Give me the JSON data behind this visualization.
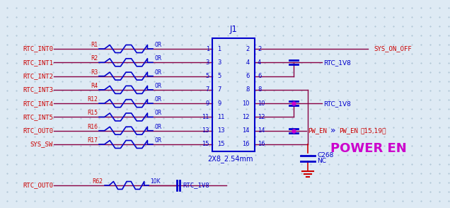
{
  "bg_color": "#deeaf4",
  "dot_color": "#a8c0d0",
  "wire_color": "#cc0000",
  "dark_wire_color": "#880044",
  "component_color": "#0000cc",
  "text_red": "#cc0000",
  "text_blue": "#0000cc",
  "text_magenta": "#cc00cc",
  "text_dark": "#660033",
  "title": "J1",
  "subtitle": "2X8_2.54mm",
  "left_signals": [
    "RTC_INT0",
    "RTC_INT1",
    "RTC_INT2",
    "RTC_INT3",
    "RTC_INT4",
    "RTC_INT5",
    "RTC_OUT0",
    "SYS_SW"
  ],
  "left_resistors": [
    "R1",
    "R2",
    "R3",
    "R4",
    "R12",
    "R15",
    "R16",
    "R17"
  ],
  "left_values": [
    "0R",
    "0R",
    "0R",
    "0R",
    "0R",
    "0R",
    "0R",
    "0R"
  ],
  "left_pin_nums": [
    "1",
    "3",
    "5",
    "7",
    "9",
    "11",
    "13",
    "15"
  ],
  "right_pin_nums": [
    "2",
    "4",
    "6",
    "8",
    "10",
    "12",
    "14",
    "16"
  ],
  "power_en_text": "POWER EN",
  "pw_en_label": "PW_EN",
  "pw_en_ref": "、15,19】",
  "sys_on_off": "SYS_ON_OFF",
  "rtc_1v8": "RTC_1V8",
  "bottom_signal": "RTC_OUT0",
  "bottom_resistor": "R62",
  "bottom_value": "10K",
  "bottom_dest": "RTC_1V8",
  "cap_ref": "C268",
  "cap_val": "NC"
}
